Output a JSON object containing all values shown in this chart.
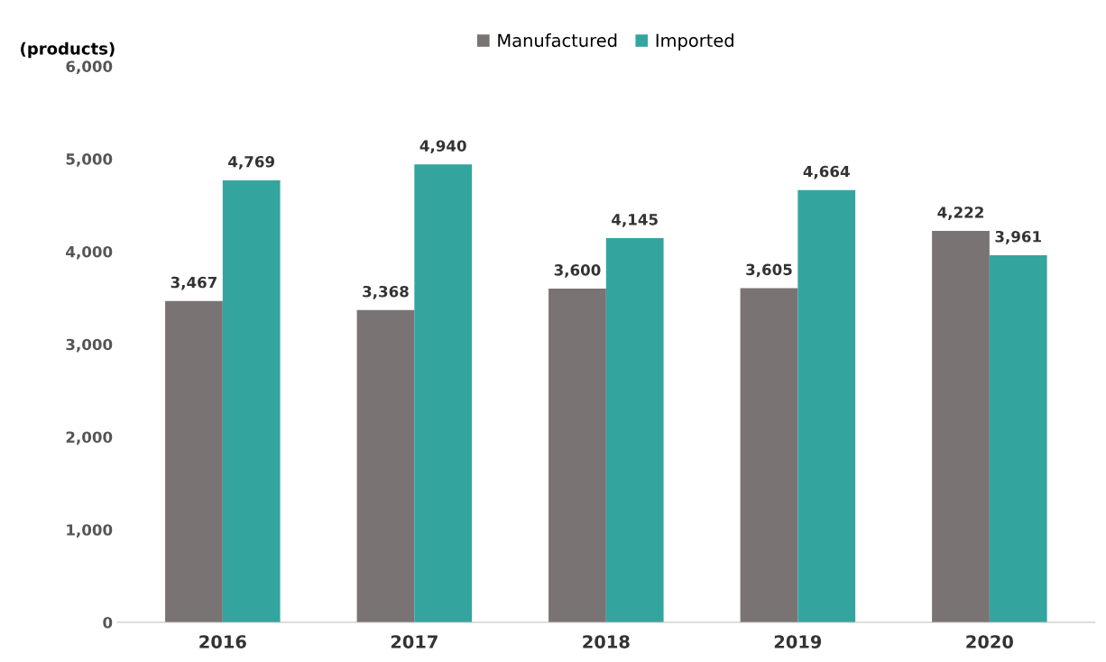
{
  "chart_data": {
    "type": "bar",
    "ylabel": "(products)",
    "categories": [
      "2016",
      "2017",
      "2018",
      "2019",
      "2020"
    ],
    "series": [
      {
        "name": "Manufactured",
        "color": "#7a7374",
        "values": [
          3467,
          3368,
          3600,
          3605,
          4222
        ],
        "value_labels": [
          "3,467",
          "3,368",
          "3,600",
          "3,605",
          "4,222"
        ]
      },
      {
        "name": "Imported",
        "color": "#33a59e",
        "values": [
          4769,
          4940,
          4145,
          4664,
          3961
        ],
        "value_labels": [
          "4,769",
          "4,940",
          "4,145",
          "4,664",
          "3,961"
        ]
      }
    ],
    "ylim": [
      0,
      6000
    ],
    "yticks": [
      0,
      {
        "value": 1000,
        "label": "1,000"
      },
      {
        "value": 2000,
        "label": "2,000"
      },
      {
        "value": 3000,
        "label": "3,000"
      },
      {
        "value": 4000,
        "label": "4,000"
      },
      {
        "value": 5000,
        "label": "5,000"
      },
      {
        "value": 6000,
        "label": "6,000"
      }
    ],
    "grid": false,
    "legend": "top"
  }
}
